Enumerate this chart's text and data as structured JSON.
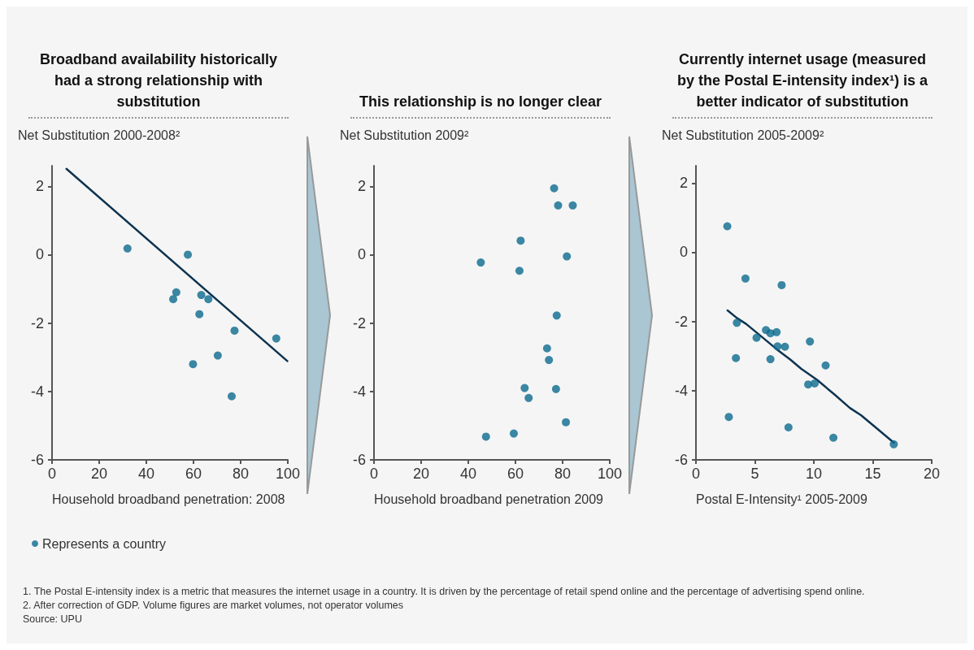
{
  "chart_data": [
    {
      "type": "scatter",
      "title": "Broadband availability historically had a strong relationship with substitution",
      "ylabel": "Net Substitution 2000-2008²",
      "xlabel": "Household broadband penetration: 2008",
      "xlim": [
        0,
        100
      ],
      "xticks": [
        0,
        20,
        40,
        60,
        80,
        100
      ],
      "ylim": [
        -6,
        2.6
      ],
      "yticks": [
        -6,
        -4,
        -2,
        0,
        2
      ],
      "marker": "circle",
      "legend": "bottom left",
      "series": [
        {
          "name": "Represents a country",
          "color": "#0b6a8e",
          "x": [
            32,
            57.6,
            52.7,
            51.4,
            63.3,
            66.3,
            62.5,
            77.4,
            95.1,
            70.3,
            59.8,
            76.2
          ],
          "values": [
            0.18,
            0,
            -1.1,
            -1.3,
            -1.18,
            -1.3,
            -1.74,
            -2.22,
            -2.45,
            -2.95,
            -3.2,
            -4.14
          ]
        },
        {
          "type": "line",
          "marker": "none",
          "color": "#0d3350",
          "x": [
            6.1,
            99.8
          ],
          "values": [
            2.51,
            -3.11
          ]
        }
      ],
      "annotations": [
        "1. The Postal E-intensity index is a metric that measures the internet usage in a country. It is driven by the percentage of retail spend online and the percentage of advertising spend online.",
        "2. After correction of GDP. Volume figures are market volumes, not operator volumes",
        "Source: UPU"
      ]
    },
    {
      "type": "scatter",
      "title": "This relationship is no longer clear",
      "ylabel": "Net Substitution 2009²",
      "xlabel": "Household broadband penetration 2009",
      "xlim": [
        0,
        100
      ],
      "xticks": [
        0,
        20,
        40,
        60,
        80,
        100
      ],
      "ylim": [
        -6,
        2.6
      ],
      "yticks": [
        -6,
        -4,
        -2,
        0,
        2
      ],
      "marker": "circle",
      "series": [
        {
          "color": "#0b6a8e",
          "x": [
            76.4,
            78.1,
            84.3,
            62.2,
            81.8,
            45.3,
            61.7,
            77.5,
            73.4,
            74.2,
            63.9,
            77.2,
            65.6,
            81.4,
            59.3,
            47.5
          ],
          "values": [
            1.94,
            1.44,
            1.44,
            0.41,
            -0.05,
            -0.23,
            -0.47,
            -1.78,
            -2.74,
            -3.08,
            -3.9,
            -3.93,
            -4.19,
            -4.9,
            -5.23,
            -5.32
          ]
        }
      ]
    },
    {
      "type": "scatter",
      "title": "Currently internet usage (measured by the Postal E-intensity index¹) is a better indicator of substitution",
      "ylabel": "Net Substitution 2005-2009²",
      "xlabel": "Postal E-Intensity¹ 2005-2009",
      "xlim": [
        0,
        20
      ],
      "xticks": [
        0,
        5,
        10,
        15,
        20
      ],
      "ylim": [
        -6,
        2.5
      ],
      "yticks": [
        -6,
        -4,
        -2,
        0,
        2
      ],
      "marker": "circle",
      "series": [
        {
          "color": "#0b6a8e",
          "x": [
            2.66,
            4.2,
            7.27,
            3.47,
            5.14,
            5.94,
            6.32,
            6.84,
            6.92,
            7.55,
            9.67,
            3.39,
            6.32,
            11.0,
            9.52,
            10.07,
            2.79,
            7.85,
            11.66,
            16.78
          ],
          "values": [
            0.75,
            -0.76,
            -0.95,
            -2.04,
            -2.47,
            -2.25,
            -2.34,
            -2.31,
            -2.72,
            -2.73,
            -2.58,
            -3.06,
            -3.09,
            -3.27,
            -3.82,
            -3.79,
            -4.76,
            -5.06,
            -5.36,
            -5.55
          ]
        },
        {
          "type": "line",
          "marker": "none",
          "color": "#0d3350",
          "x": [
            2.68,
            3.47,
            4.25,
            5.57,
            6.88,
            8.0,
            8.94,
            10.25,
            11.75,
            13.06,
            14.0,
            15.3,
            16.78
          ],
          "values": [
            -1.68,
            -1.9,
            -2.07,
            -2.44,
            -2.81,
            -3.1,
            -3.37,
            -3.68,
            -4.11,
            -4.5,
            -4.71,
            -5.08,
            -5.5
          ]
        }
      ]
    }
  ]
}
